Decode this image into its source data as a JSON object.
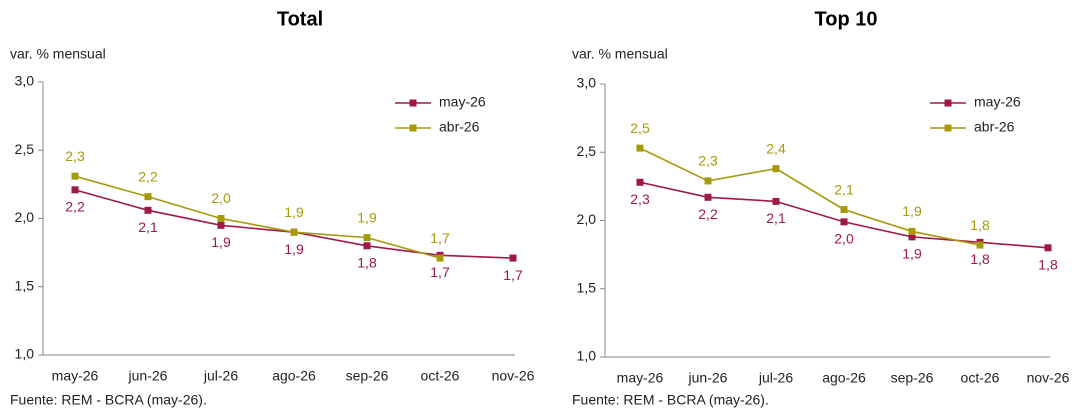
{
  "chart_data": [
    {
      "type": "line",
      "title": "Total",
      "y_label": "var. % mensual",
      "source": "Fuente: REM - BCRA (may-26).",
      "categories": [
        "may-26",
        "jun-26",
        "jul-26",
        "ago-26",
        "sep-26",
        "oct-26",
        "nov-26"
      ],
      "series": [
        {
          "name": "may-26",
          "color": "#a0174a",
          "values": [
            2.21,
            2.06,
            1.95,
            1.9,
            1.8,
            1.73,
            1.71
          ],
          "value_labels": [
            "2,2",
            "2,1",
            "1,9",
            "1,9",
            "1,8",
            "1,7",
            "1,7"
          ]
        },
        {
          "name": "abr-26",
          "color": "#a59a0a",
          "values": [
            2.31,
            2.16,
            2.0,
            1.9,
            1.86,
            1.71,
            null
          ],
          "value_labels": [
            "2,3",
            "2,2",
            "2,0",
            "1,9",
            "1,9",
            "1,7",
            null
          ]
        }
      ],
      "ylim": [
        1,
        3
      ],
      "yticks": [
        {
          "value": 1,
          "label": "1,0"
        },
        {
          "value": 1.5,
          "label": "1,5"
        },
        {
          "value": 2,
          "label": "2,0"
        },
        {
          "value": 2.5,
          "label": "2,5"
        },
        {
          "value": 3,
          "label": "3,0"
        }
      ],
      "grid": false,
      "legend": "upper right"
    },
    {
      "type": "line",
      "title": "Top 10",
      "y_label": "var. % mensual",
      "source": "Fuente: REM - BCRA (may-26).",
      "categories": [
        "may-26",
        "jun-26",
        "jul-26",
        "ago-26",
        "sep-26",
        "oct-26",
        "nov-26"
      ],
      "series": [
        {
          "name": "may-26",
          "color": "#a0174a",
          "values": [
            2.28,
            2.17,
            2.14,
            1.99,
            1.88,
            1.84,
            1.8
          ],
          "value_labels": [
            "2,3",
            "2,2",
            "2,1",
            "2,0",
            "1,9",
            "1,8",
            "1,8"
          ]
        },
        {
          "name": "abr-26",
          "color": "#a59a0a",
          "values": [
            2.53,
            2.29,
            2.38,
            2.08,
            1.92,
            1.82,
            null
          ],
          "value_labels": [
            "2,5",
            "2,3",
            "2,4",
            "2,1",
            "1,9",
            "1,8",
            null
          ]
        }
      ],
      "ylim": [
        1,
        3
      ],
      "yticks": [
        {
          "value": 1,
          "label": "1,0"
        },
        {
          "value": 1.5,
          "label": "1,5"
        },
        {
          "value": 2,
          "label": "2,0"
        },
        {
          "value": 2.5,
          "label": "2,5"
        },
        {
          "value": 3,
          "label": "3,0"
        }
      ],
      "grid": false,
      "legend": "upper right"
    }
  ]
}
